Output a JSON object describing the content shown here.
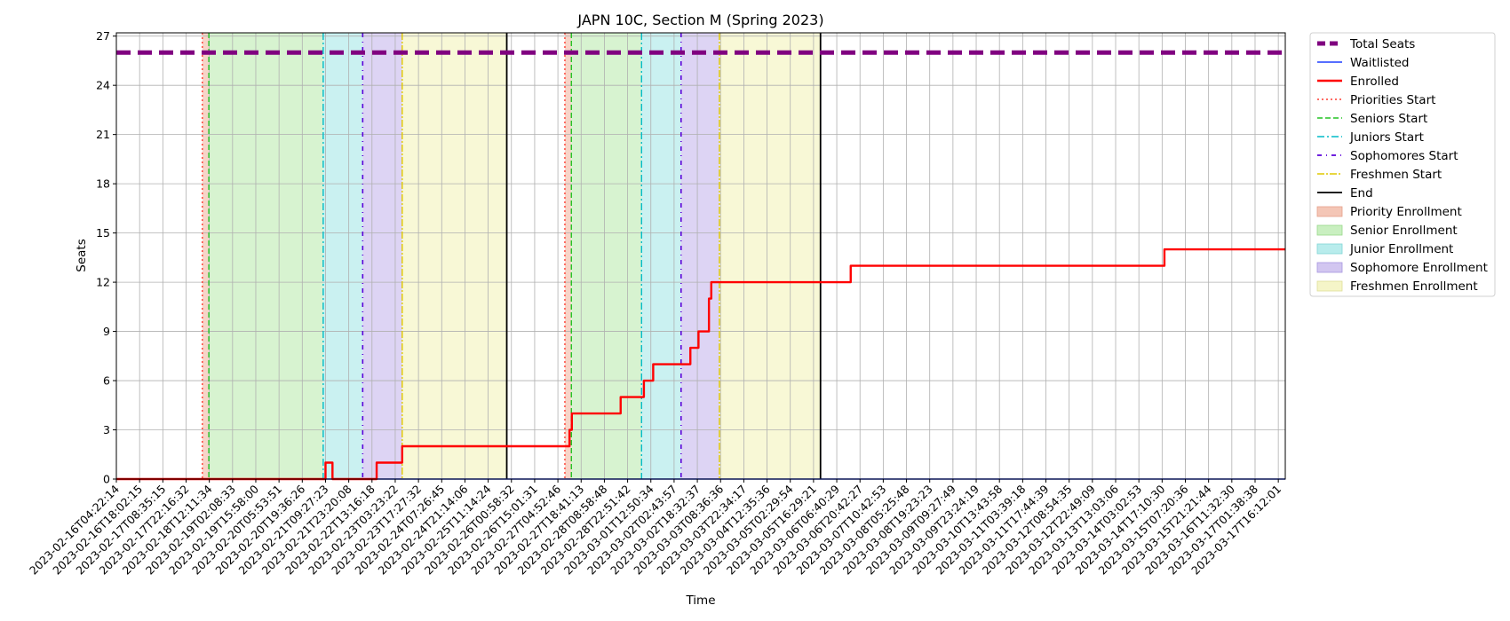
{
  "chart_data": {
    "type": "line",
    "title": "JAPN 10C, Section M (Spring 2023)",
    "xlabel": "Time",
    "ylabel": "Seats",
    "ylim": [
      0,
      27.2
    ],
    "yticks": [
      0,
      3,
      6,
      9,
      12,
      15,
      18,
      21,
      24,
      27
    ],
    "grid": true,
    "legend_position": "outside-top-right",
    "x_ticks": [
      "2023-02-16T04:22:14",
      "2023-02-16T18:02:15",
      "2023-02-17T08:35:15",
      "2023-02-17T22:16:32",
      "2023-02-18T12:11:34",
      "2023-02-19T02:08:33",
      "2023-02-19T15:58:00",
      "2023-02-20T05:53:51",
      "2023-02-20T19:36:26",
      "2023-02-21T09:27:23",
      "2023-02-21T23:20:08",
      "2023-02-22T13:16:18",
      "2023-02-23T03:23:22",
      "2023-02-23T17:27:32",
      "2023-02-24T07:26:45",
      "2023-02-24T21:14:06",
      "2023-02-25T11:14:24",
      "2023-02-26T00:58:32",
      "2023-02-26T15:01:31",
      "2023-02-27T04:52:46",
      "2023-02-27T18:41:13",
      "2023-02-28T08:58:48",
      "2023-02-28T22:51:42",
      "2023-03-01T12:50:34",
      "2023-03-02T02:43:57",
      "2023-03-02T18:32:37",
      "2023-03-03T08:36:36",
      "2023-03-03T22:34:17",
      "2023-03-04T12:35:36",
      "2023-03-05T02:29:54",
      "2023-03-05T16:29:21",
      "2023-03-06T06:40:29",
      "2023-03-06T20:42:27",
      "2023-03-07T10:42:53",
      "2023-03-08T05:25:48",
      "2023-03-08T19:23:23",
      "2023-03-09T09:27:49",
      "2023-03-09T23:24:19",
      "2023-03-10T13:43:58",
      "2023-03-11T03:39:18",
      "2023-03-11T17:44:39",
      "2023-03-12T08:54:35",
      "2023-03-12T22:49:09",
      "2023-03-13T13:03:06",
      "2023-03-14T03:02:53",
      "2023-03-14T17:10:30",
      "2023-03-15T07:20:36",
      "2023-03-15T21:21:44",
      "2023-03-16T11:32:30",
      "2023-03-17T01:38:38",
      "2023-03-17T16:12:01"
    ],
    "x_range": [
      0,
      50.3
    ],
    "bands": [
      {
        "name": "Priority Enrollment",
        "from": 3.7,
        "to": 3.98,
        "color": "#f4c6b6"
      },
      {
        "name": "Senior Enrollment",
        "from": 3.98,
        "to": 8.9,
        "color": "#c9efc0"
      },
      {
        "name": "Junior Enrollment",
        "from": 8.9,
        "to": 10.6,
        "color": "#b8ecec"
      },
      {
        "name": "Sophomore Enrollment",
        "from": 10.6,
        "to": 12.3,
        "color": "#d2c6f0"
      },
      {
        "name": "Freshmen Enrollment",
        "from": 12.3,
        "to": 16.8,
        "color": "#f5f5c8"
      },
      {
        "name": "Priority Enrollment",
        "from": 19.3,
        "to": 19.58,
        "color": "#f4c6b6"
      },
      {
        "name": "Senior Enrollment",
        "from": 19.58,
        "to": 22.6,
        "color": "#c9efc0"
      },
      {
        "name": "Junior Enrollment",
        "from": 22.6,
        "to": 24.3,
        "color": "#b8ecec"
      },
      {
        "name": "Sophomore Enrollment",
        "from": 24.3,
        "to": 25.95,
        "color": "#d2c6f0"
      },
      {
        "name": "Freshmen Enrollment",
        "from": 25.95,
        "to": 30.3,
        "color": "#f5f5c8"
      }
    ],
    "vlines": [
      {
        "name": "Priorities Start",
        "x": 3.7,
        "color": "#ff3b30",
        "dash": "2,3",
        "width": 1.4
      },
      {
        "name": "Seniors Start",
        "x": 3.98,
        "color": "#22c322",
        "dash": "6,3",
        "width": 1.4
      },
      {
        "name": "Juniors Start",
        "x": 8.9,
        "color": "#00bcc8",
        "dash": "8,3,2,3",
        "width": 1.4
      },
      {
        "name": "Sophomores Start",
        "x": 10.6,
        "color": "#5a00d9",
        "dash": "5,5,1,5",
        "width": 1.6
      },
      {
        "name": "Freshmen Start",
        "x": 12.3,
        "color": "#e0c800",
        "dash": "8,2,2,2",
        "width": 1.4
      },
      {
        "name": "End",
        "x": 16.8,
        "color": "#000000",
        "dash": "",
        "width": 1.8
      },
      {
        "name": "Priorities Start",
        "x": 19.3,
        "color": "#ff3b30",
        "dash": "2,3",
        "width": 1.4
      },
      {
        "name": "Seniors Start",
        "x": 19.58,
        "color": "#22c322",
        "dash": "6,3",
        "width": 1.4
      },
      {
        "name": "Juniors Start",
        "x": 22.6,
        "color": "#00bcc8",
        "dash": "8,3,2,3",
        "width": 1.4
      },
      {
        "name": "Sophomores Start",
        "x": 24.3,
        "color": "#5a00d9",
        "dash": "5,5,1,5",
        "width": 1.6
      },
      {
        "name": "Freshmen Start",
        "x": 25.95,
        "color": "#e0c800",
        "dash": "8,2,2,2",
        "width": 1.4
      },
      {
        "name": "End",
        "x": 30.3,
        "color": "#000000",
        "dash": "",
        "width": 1.8
      }
    ],
    "series": [
      {
        "name": "Total Seats",
        "color": "#800080",
        "points": [
          [
            0,
            26
          ],
          [
            50.3,
            26
          ]
        ]
      },
      {
        "name": "Waitlisted",
        "color": "#1f3fff",
        "points": [
          [
            0,
            0
          ],
          [
            50.3,
            0
          ]
        ]
      },
      {
        "name": "Enrolled",
        "color": "#ff0000",
        "points": [
          [
            0,
            0
          ],
          [
            9.0,
            0
          ],
          [
            9.0,
            1
          ],
          [
            9.3,
            1
          ],
          [
            9.3,
            0
          ],
          [
            11.2,
            0
          ],
          [
            11.2,
            1
          ],
          [
            12.3,
            1
          ],
          [
            12.3,
            2
          ],
          [
            19.5,
            2
          ],
          [
            19.5,
            3
          ],
          [
            19.6,
            3
          ],
          [
            19.6,
            4
          ],
          [
            21.7,
            4
          ],
          [
            21.7,
            5
          ],
          [
            22.7,
            5
          ],
          [
            22.7,
            6
          ],
          [
            23.1,
            6
          ],
          [
            23.1,
            7
          ],
          [
            24.7,
            7
          ],
          [
            24.7,
            8
          ],
          [
            25.05,
            8
          ],
          [
            25.05,
            9
          ],
          [
            25.5,
            9
          ],
          [
            25.5,
            11
          ],
          [
            25.6,
            11
          ],
          [
            25.6,
            12
          ],
          [
            31.6,
            12
          ],
          [
            31.6,
            13
          ],
          [
            45.1,
            13
          ],
          [
            45.1,
            14
          ],
          [
            50.3,
            14
          ]
        ]
      }
    ],
    "legend": [
      {
        "label": "Total Seats",
        "kind": "line",
        "color": "#800080",
        "dash": "9,5",
        "width": 5
      },
      {
        "label": "Waitlisted",
        "kind": "line",
        "color": "#1f3fff",
        "dash": "",
        "width": 1.4
      },
      {
        "label": "Enrolled",
        "kind": "line",
        "color": "#ff0000",
        "dash": "",
        "width": 2.4
      },
      {
        "label": "Priorities Start",
        "kind": "line",
        "color": "#ff3b30",
        "dash": "2,3",
        "width": 1.5
      },
      {
        "label": "Seniors Start",
        "kind": "line",
        "color": "#22c322",
        "dash": "6,3",
        "width": 1.5
      },
      {
        "label": "Juniors Start",
        "kind": "line",
        "color": "#00bcc8",
        "dash": "8,3,2,3",
        "width": 1.5
      },
      {
        "label": "Sophomores Start",
        "kind": "line",
        "color": "#5a00d9",
        "dash": "5,5,1,5",
        "width": 1.8
      },
      {
        "label": "Freshmen Start",
        "kind": "line",
        "color": "#e0c800",
        "dash": "8,2,2,2",
        "width": 1.5
      },
      {
        "label": "End",
        "kind": "line",
        "color": "#000000",
        "dash": "",
        "width": 1.8
      },
      {
        "label": "Priority Enrollment",
        "kind": "patch",
        "color": "#f4c6b6",
        "border": "#e6a08a"
      },
      {
        "label": "Senior Enrollment",
        "kind": "patch",
        "color": "#c9efc0",
        "border": "#98d88a"
      },
      {
        "label": "Junior Enrollment",
        "kind": "patch",
        "color": "#b8ecec",
        "border": "#80d6d6"
      },
      {
        "label": "Sophomore Enrollment",
        "kind": "patch",
        "color": "#d2c6f0",
        "border": "#a796e0"
      },
      {
        "label": "Freshmen Enrollment",
        "kind": "patch",
        "color": "#f5f5c8",
        "border": "#dede98"
      }
    ]
  }
}
